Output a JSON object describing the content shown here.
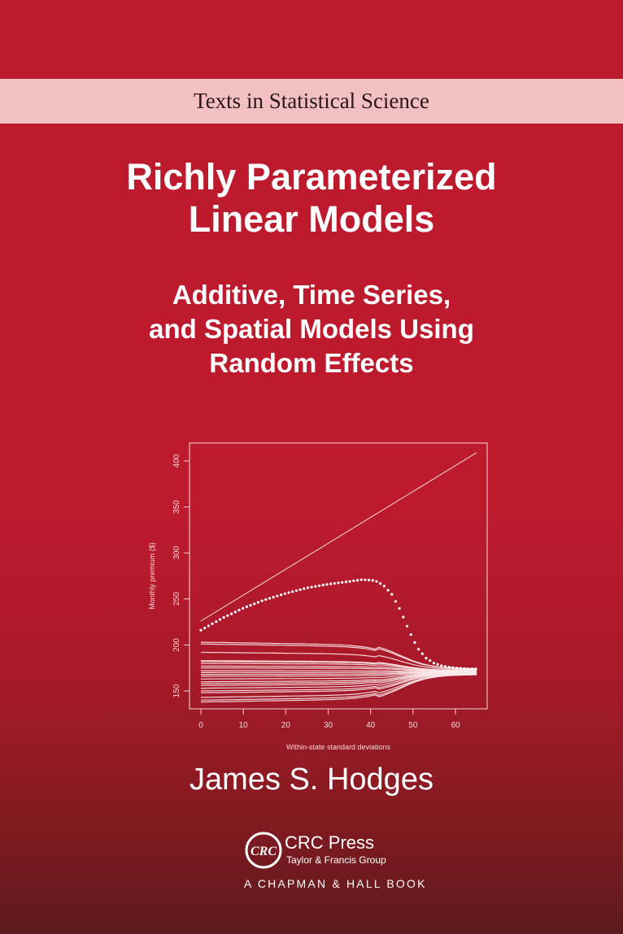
{
  "series_name": "Texts in Statistical Science",
  "title_lines": [
    "Richly Parameterized",
    "Linear Models"
  ],
  "subtitle_lines": [
    "Additive, Time Series,",
    "and Spatial Models Using",
    "Random Effects"
  ],
  "author": "James S. Hodges",
  "publisher": {
    "logo_text": "CRC",
    "name": "CRC Press",
    "group": "Taylor & Francis Group",
    "imprint": "A CHAPMAN & HALL BOOK"
  },
  "colors": {
    "background": "#be1a2e",
    "band": "#f2c0c0",
    "band_text": "#2a1616",
    "plot_ink": "#f6d8d8"
  },
  "chart_data": {
    "type": "line",
    "xlabel": "Within-state standard deviations",
    "ylabel": "Monthly premium ($)",
    "xlim": [
      -3,
      68
    ],
    "ylim": [
      130,
      412
    ],
    "xticks": [
      0,
      10,
      20,
      30,
      40,
      50,
      60
    ],
    "yticks": [
      150,
      200,
      250,
      300,
      350,
      400
    ],
    "grid": false,
    "straight_line": {
      "x": [
        0,
        65
      ],
      "y": [
        226,
        409
      ]
    },
    "dotted_curve": {
      "x": [
        0,
        5,
        10,
        15,
        20,
        25,
        30,
        35,
        38,
        41,
        43,
        45,
        47,
        49,
        51,
        53,
        55,
        57,
        60,
        63,
        65
      ],
      "y": [
        216,
        229,
        240,
        249,
        256,
        262,
        266,
        269,
        271,
        270,
        265,
        255,
        238,
        216,
        197,
        186,
        180,
        177,
        175,
        174,
        174
      ]
    },
    "state_lines": {
      "x_range": [
        0,
        65
      ],
      "start_values": [
        203,
        201,
        192,
        183,
        182,
        180,
        177,
        175,
        172,
        170,
        168,
        166,
        163,
        160,
        158,
        156,
        153,
        150,
        148,
        143,
        140,
        138
      ],
      "converge_value": 171
    }
  }
}
